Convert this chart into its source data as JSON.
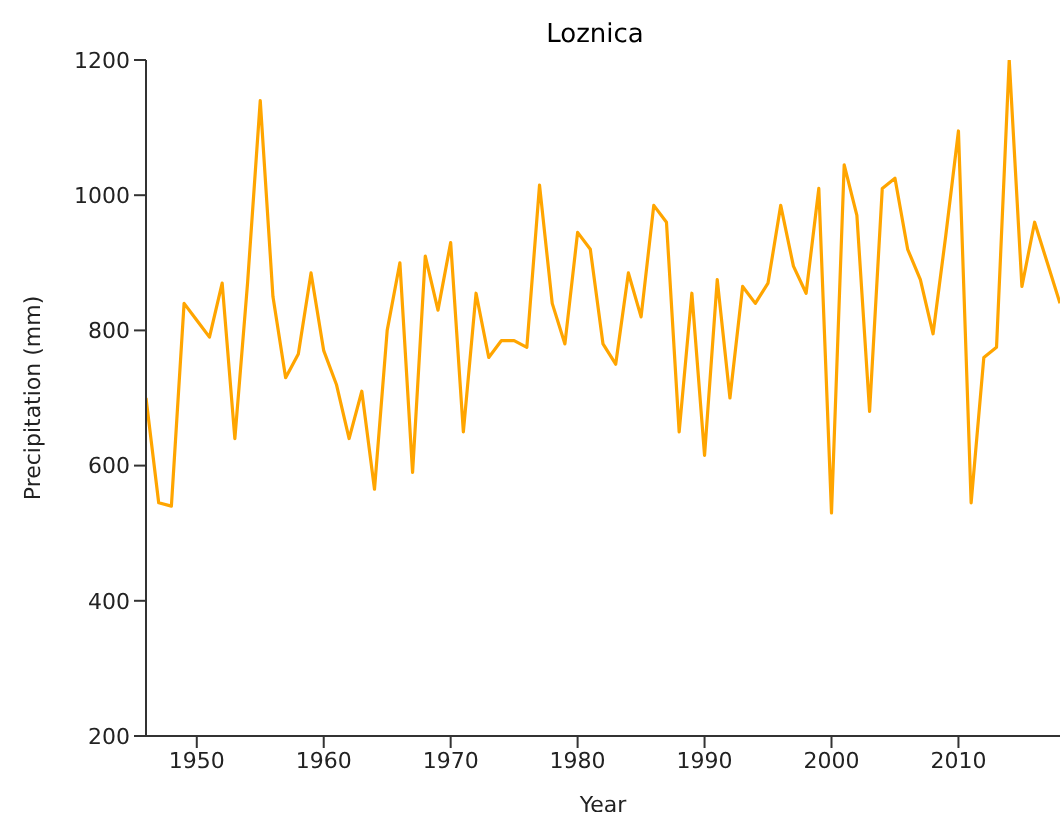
{
  "chart_data": {
    "type": "line",
    "title": "Loznica",
    "xlabel": "Year",
    "ylabel": "Precipitation (mm)",
    "x": [
      1946,
      1947,
      1948,
      1949,
      1950,
      1951,
      1952,
      1953,
      1954,
      1955,
      1956,
      1957,
      1958,
      1959,
      1960,
      1961,
      1962,
      1963,
      1964,
      1965,
      1966,
      1967,
      1968,
      1969,
      1970,
      1971,
      1972,
      1973,
      1974,
      1975,
      1976,
      1977,
      1978,
      1979,
      1980,
      1981,
      1982,
      1983,
      1984,
      1985,
      1986,
      1987,
      1988,
      1989,
      1990,
      1991,
      1992,
      1993,
      1994,
      1995,
      1996,
      1997,
      1998,
      1999,
      2000,
      2001,
      2002,
      2003,
      2004,
      2005,
      2006,
      2007,
      2008,
      2009,
      2010,
      2011,
      2012,
      2013,
      2014,
      2015,
      2016,
      2017,
      2018
    ],
    "series": [
      {
        "color": "#ffa500",
        "values": [
          700,
          545,
          540,
          840,
          815,
          790,
          870,
          640,
          870,
          1140,
          850,
          730,
          765,
          885,
          770,
          720,
          640,
          710,
          565,
          800,
          900,
          590,
          910,
          830,
          930,
          650,
          855,
          760,
          785,
          785,
          775,
          1015,
          840,
          780,
          945,
          920,
          780,
          750,
          885,
          820,
          985,
          960,
          650,
          855,
          615,
          875,
          700,
          865,
          840,
          870,
          985,
          895,
          855,
          1010,
          530,
          1045,
          970,
          680,
          1010,
          1025,
          920,
          875,
          795,
          940,
          1095,
          545,
          760,
          775,
          1200,
          865,
          960,
          900,
          840
        ]
      }
    ],
    "xlim": [
      1946,
      2018
    ],
    "xticks": [
      1950,
      1960,
      1970,
      1980,
      1990,
      2000,
      2010
    ],
    "ylim": [
      200,
      1200
    ],
    "yticks": [
      200,
      400,
      600,
      800,
      1000,
      1200
    ],
    "grid": false,
    "legend": false
  }
}
